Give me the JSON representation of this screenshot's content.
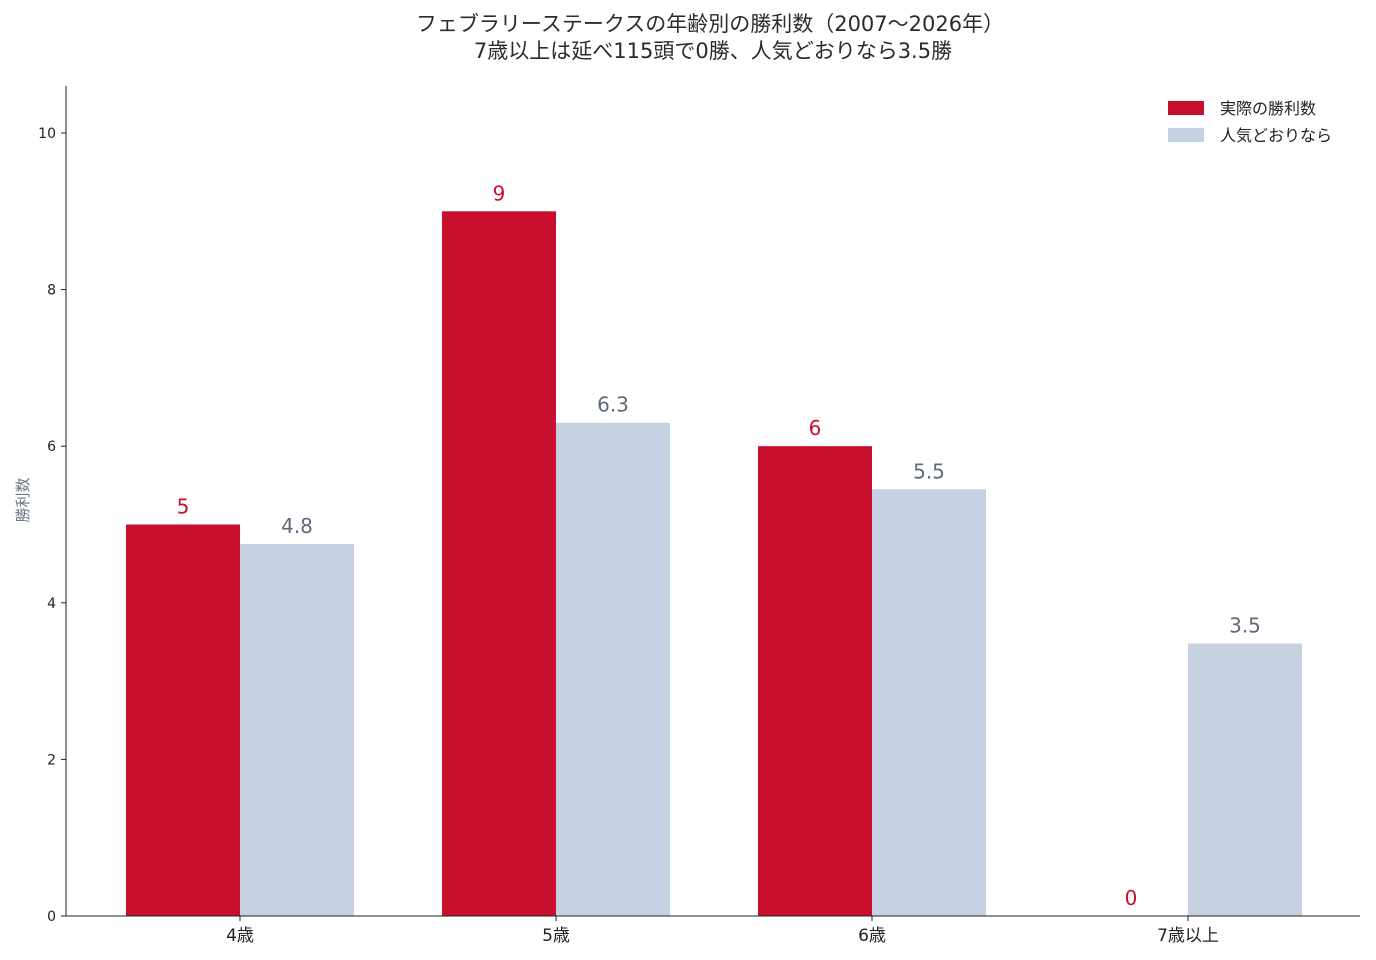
{
  "chart_data": {
    "type": "bar",
    "title_lines": [
      "フェブラリーステークスの年齢別の勝利数（2007〜2026年）",
      "7歳以上は延べ115頭で0勝、人気どおりなら3.5勝"
    ],
    "ylabel": "勝利数",
    "xlabel": "",
    "categories": [
      "4歳",
      "5歳",
      "6歳",
      "7歳以上"
    ],
    "ylim": [
      0,
      10.6
    ],
    "yticks": [
      0,
      2,
      4,
      6,
      8,
      10
    ],
    "grid": false,
    "legend_position": "top-right",
    "series": [
      {
        "name": "実際の勝利数",
        "values": [
          5,
          9,
          6,
          0
        ],
        "labels": [
          "5",
          "9",
          "6",
          "0"
        ],
        "color": "#c8102e"
      },
      {
        "name": "人気どおりなら",
        "values": [
          4.75,
          6.3,
          5.45,
          3.48
        ],
        "labels": [
          "4.8",
          "6.3",
          "5.5",
          "3.5"
        ],
        "color": "#c5d1e0"
      }
    ],
    "value_label_colors": [
      "#c8102e",
      "#5f6b7a"
    ]
  }
}
